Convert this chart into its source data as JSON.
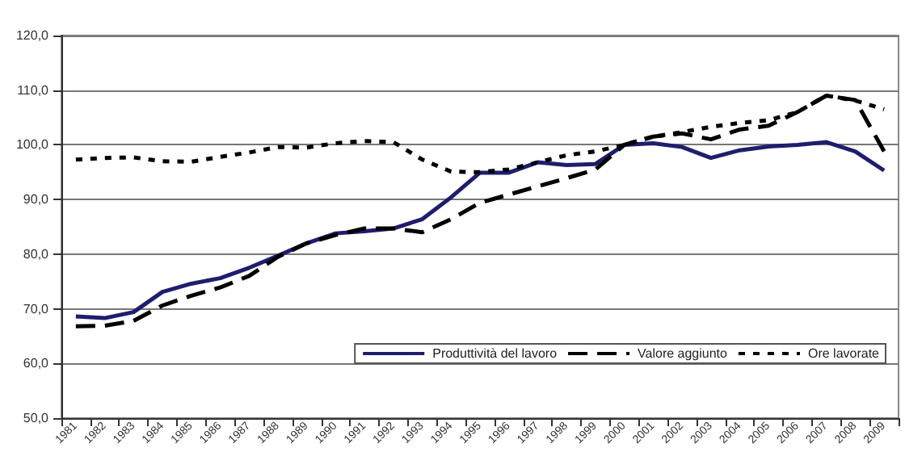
{
  "chart_data": {
    "type": "line",
    "categories": [
      "1981",
      "1982",
      "1983",
      "1984",
      "1985",
      "1986",
      "1987",
      "1988",
      "1989",
      "1990",
      "1991",
      "1992",
      "1993",
      "1994",
      "1995",
      "1996",
      "1997",
      "1998",
      "1999",
      "2000",
      "2001",
      "2002",
      "2003",
      "2004",
      "2005",
      "2006",
      "2007",
      "2008",
      "2009"
    ],
    "series": [
      {
        "name": "Produttività del lavoro",
        "color": "#1f1d6e",
        "line_style": "solid",
        "values": [
          68.6,
          68.3,
          69.4,
          73.1,
          74.6,
          75.6,
          77.5,
          79.7,
          82.0,
          83.8,
          84.2,
          84.7,
          86.4,
          90.4,
          94.9,
          94.9,
          96.8,
          96.3,
          96.5,
          100,
          100.3,
          99.6,
          97.6,
          99.0,
          99.7,
          100,
          100.5,
          98.8,
          95.3
        ]
      },
      {
        "name": "Valore aggiunto",
        "color": "#000000",
        "line_style": "dashed",
        "values": [
          66.8,
          66.9,
          67.8,
          70.6,
          72.4,
          73.9,
          76.0,
          79.5,
          82.0,
          83.5,
          84.7,
          84.7,
          84.0,
          86.4,
          89.4,
          90.9,
          92.4,
          93.9,
          95.5,
          100,
          101.5,
          102.1,
          101.0,
          102.8,
          103.5,
          106.0,
          109.0,
          108.2,
          98.8
        ]
      },
      {
        "name": "Ore lavorate",
        "color": "#000000",
        "line_style": "dotted",
        "values": [
          97.3,
          97.6,
          97.7,
          97.0,
          96.9,
          97.8,
          98.6,
          99.6,
          99.5,
          100.3,
          100.7,
          100.5,
          97.3,
          95.1,
          95.0,
          95.5,
          96.8,
          98.1,
          98.8,
          100,
          101.5,
          102.3,
          103.3,
          104.0,
          104.5,
          106.0,
          109.0,
          108.1,
          106.5
        ]
      }
    ],
    "ylim": [
      50,
      120
    ],
    "yticks": [
      {
        "value": 50,
        "label": "50,0"
      },
      {
        "value": 60,
        "label": "60,0"
      },
      {
        "value": 70,
        "label": "70,0"
      },
      {
        "value": 80,
        "label": "80,0"
      },
      {
        "value": 90,
        "label": "90,0"
      },
      {
        "value": 100,
        "label": "100,0"
      },
      {
        "value": 110,
        "label": "110,0"
      },
      {
        "value": 120,
        "label": "120,0"
      }
    ],
    "grid": "y",
    "legend": "bottom right",
    "marker": "none"
  }
}
